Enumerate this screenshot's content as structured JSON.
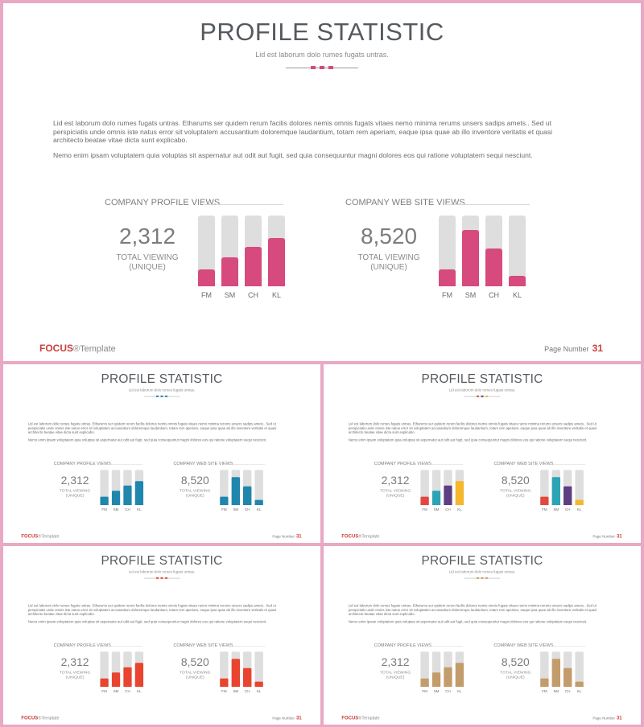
{
  "slide": {
    "title": "PROFILE STATISTIC",
    "subtitle": "Lid est laborum dolo rumes fugats untras.",
    "paragraph1": "Lid est laborum dolo rumes fugats untras. Etharums ser quidem rerum facilis dolores nemis omnis fugats vitaes nemo minima rerums unsers sadips amets.. Sed ut perspiciatis unde omnis iste natus error sit voluptatem accusantium doloremque laudantium, totam rem aperiam, eaque ipsa quae ab illo inventore veritatis et quasi architecto beatae vitae dicta sunt explicabo.",
    "paragraph2": "Nemo enim ipsam voluptatem quia voluptas sit aspernatur aut odit aut fugit, sed quia consequuntur magni dolores eos qui ratione voluptatem sequi nesciunt.",
    "brand": "FOCUS",
    "brand_suffix": "®Template",
    "page_label": "Page Number",
    "page_number": "31"
  },
  "stats": [
    {
      "label": "COMPANY PROFILE VIEWS",
      "value": "2,312",
      "caption_line1": "TOTAL VIEWING",
      "caption_line2": "(UNIQUE)"
    },
    {
      "label": "COMPANY WEB SITE VIEWS",
      "value": "8,520",
      "caption_line1": "TOTAL VIEWING",
      "caption_line2": "(UNIQUE)"
    }
  ],
  "chart_data": [
    {
      "type": "bar",
      "title": "COMPANY PROFILE VIEWS",
      "categories": [
        "FM",
        "SM",
        "CH",
        "KL"
      ],
      "values": [
        24,
        41,
        56,
        68
      ],
      "ylim": [
        0,
        100
      ]
    },
    {
      "type": "bar",
      "title": "COMPANY WEB SITE VIEWS",
      "categories": [
        "FM",
        "SM",
        "CH",
        "KL"
      ],
      "values": [
        24,
        80,
        53,
        15
      ],
      "ylim": [
        0,
        100
      ]
    }
  ],
  "themes": [
    {
      "name": "pink",
      "bar_colors": [
        "#d64a7d",
        "#d64a7d",
        "#d64a7d",
        "#d64a7d"
      ],
      "deco_colors": [
        "#d64a7d",
        "#d64a7d",
        "#d64a7d"
      ]
    },
    {
      "name": "blue",
      "bar_colors": [
        "#1f86ae",
        "#1f86ae",
        "#1f86ae",
        "#1f86ae"
      ],
      "deco_colors": [
        "#1f86ae",
        "#1f86ae",
        "#1f86ae"
      ]
    },
    {
      "name": "multicolor",
      "bar_colors": [
        "#e2483f",
        "#2da3b6",
        "#5d3f82",
        "#f5b72b"
      ],
      "deco_colors": [
        "#e2483f",
        "#5d3f82",
        "#f5b72b"
      ]
    },
    {
      "name": "red",
      "bar_colors": [
        "#e8442f",
        "#e8442f",
        "#e8442f",
        "#e8442f"
      ],
      "deco_colors": [
        "#e8442f",
        "#e8442f",
        "#e8442f"
      ]
    },
    {
      "name": "tan",
      "bar_colors": [
        "#c39c6b",
        "#c39c6b",
        "#c39c6b",
        "#c39c6b"
      ],
      "deco_colors": [
        "#c39c6b",
        "#c39c6b",
        "#c39c6b"
      ]
    }
  ]
}
